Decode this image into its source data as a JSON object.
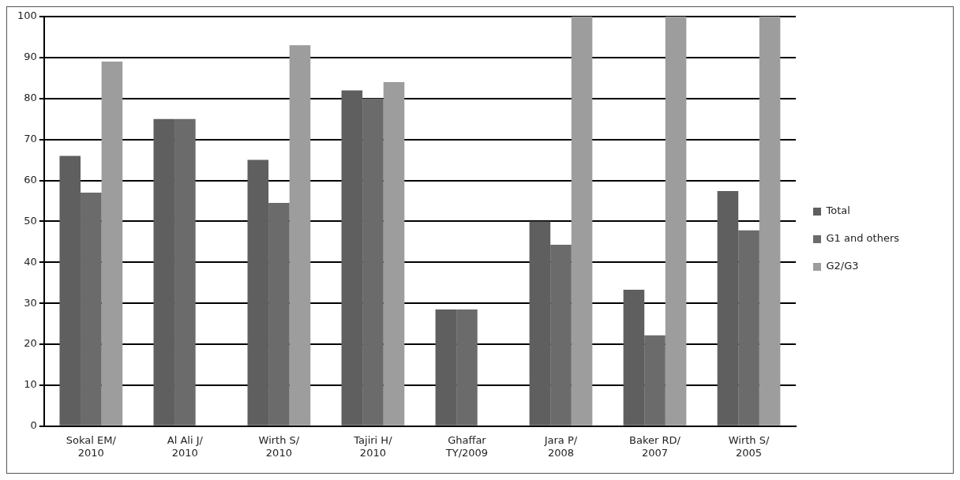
{
  "chart_data": {
    "type": "bar",
    "categories": [
      "Sokal EM/\n2010",
      "Al Ali J/\n2010",
      "Wirth S/\n2010",
      "Tajiri H/\n2010",
      "Ghaffar\nTY/2009",
      "Jara P/\n2008",
      "Baker RD/\n2007",
      "Wirth S/\n2005"
    ],
    "series": [
      {
        "name": "Total",
        "color": "#5f5f5f",
        "values": [
          66,
          75,
          65,
          82,
          28.5,
          50,
          33.3,
          57.4
        ]
      },
      {
        "name": "G1 and others",
        "color": "#6b6b6b",
        "values": [
          57,
          75,
          54.5,
          80,
          28.5,
          44.3,
          22.2,
          47.8
        ]
      },
      {
        "name": "G2/G3",
        "color": "#9d9d9d",
        "values": [
          89,
          null,
          93,
          84,
          null,
          100,
          100,
          100
        ]
      }
    ],
    "ylim": [
      0,
      100
    ],
    "yticks": [
      0,
      10,
      20,
      30,
      40,
      50,
      60,
      70,
      80,
      90,
      100
    ],
    "grid": "y",
    "legend": "right"
  }
}
